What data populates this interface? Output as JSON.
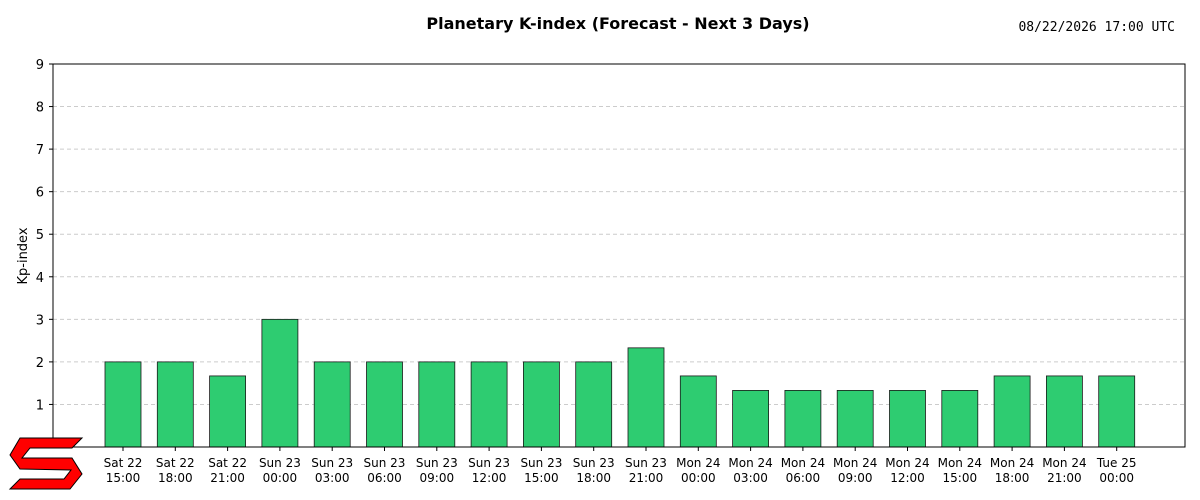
{
  "header": {
    "title": "Planetary K-index (Forecast - Next 3 Days)",
    "timestamp": "08/22/2026 17:00 UTC"
  },
  "logo": {
    "name": "swpc-logo",
    "color": "#ff0000",
    "text": "S"
  },
  "chart_data": {
    "type": "bar",
    "title": "Planetary K-index (Forecast - Next 3 Days)",
    "xlabel": "",
    "ylabel": "Kp-index",
    "ylim": [
      0,
      9
    ],
    "yticks": [
      1,
      2,
      3,
      4,
      5,
      6,
      7,
      8,
      9
    ],
    "grid": true,
    "bar_color": "#2ecc71",
    "categories": [
      [
        "Sat 22",
        "15:00"
      ],
      [
        "Sat 22",
        "18:00"
      ],
      [
        "Sat 22",
        "21:00"
      ],
      [
        "Sun 23",
        "00:00"
      ],
      [
        "Sun 23",
        "03:00"
      ],
      [
        "Sun 23",
        "06:00"
      ],
      [
        "Sun 23",
        "09:00"
      ],
      [
        "Sun 23",
        "12:00"
      ],
      [
        "Sun 23",
        "15:00"
      ],
      [
        "Sun 23",
        "18:00"
      ],
      [
        "Sun 23",
        "21:00"
      ],
      [
        "Mon 24",
        "00:00"
      ],
      [
        "Mon 24",
        "03:00"
      ],
      [
        "Mon 24",
        "06:00"
      ],
      [
        "Mon 24",
        "09:00"
      ],
      [
        "Mon 24",
        "12:00"
      ],
      [
        "Mon 24",
        "15:00"
      ],
      [
        "Mon 24",
        "18:00"
      ],
      [
        "Mon 24",
        "21:00"
      ],
      [
        "Tue 25",
        "00:00"
      ]
    ],
    "values": [
      2.0,
      2.0,
      1.67,
      3.0,
      2.0,
      2.0,
      2.0,
      2.0,
      2.0,
      2.0,
      2.33,
      1.67,
      1.33,
      1.33,
      1.33,
      1.33,
      1.33,
      1.67,
      1.67,
      1.67
    ]
  }
}
